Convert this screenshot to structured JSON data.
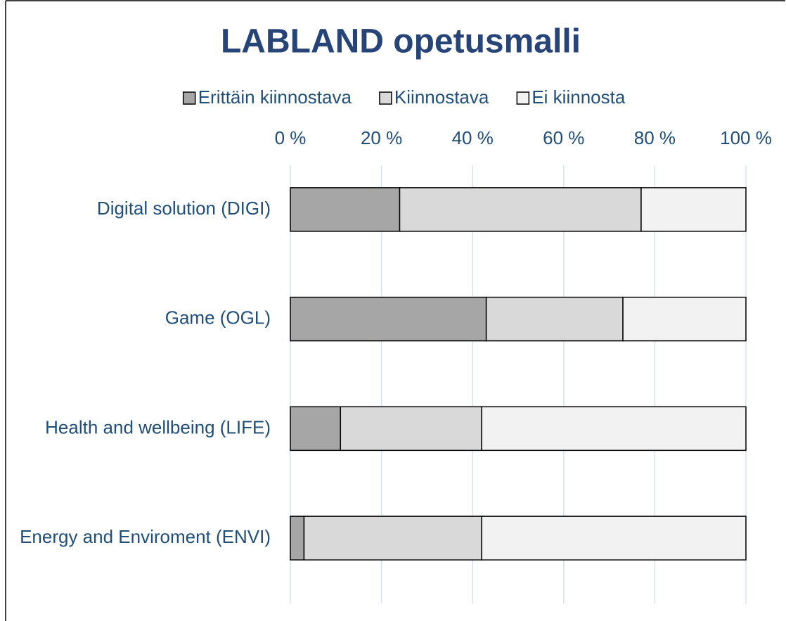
{
  "chart_data": {
    "type": "stacked_barh",
    "title": "LABLAND opetusmalli",
    "categories": [
      "Digital solution (DIGI)",
      "Game (OGL)",
      "Health and wellbeing (LIFE)",
      "Energy and Enviroment (ENVI)"
    ],
    "series": [
      {
        "name": "Erittäin kiinnostava",
        "color": "#a6a6a6",
        "values": [
          24,
          43,
          11,
          3
        ]
      },
      {
        "name": "Kiinnostava",
        "color": "#d9d9d9",
        "values": [
          53,
          30,
          31,
          39
        ]
      },
      {
        "name": "Ei kiinnosta",
        "color": "#f2f2f2",
        "values": [
          23,
          27,
          58,
          58
        ]
      }
    ],
    "xlim": [
      0,
      100
    ],
    "xticks": [
      {
        "value": 0,
        "label": "0 %"
      },
      {
        "value": 20,
        "label": "20 %"
      },
      {
        "value": 40,
        "label": "40 %"
      },
      {
        "value": 60,
        "label": "60 %"
      },
      {
        "value": 80,
        "label": "80 %"
      },
      {
        "value": 100,
        "label": "100 %"
      }
    ],
    "grid": true,
    "legend": "top"
  }
}
